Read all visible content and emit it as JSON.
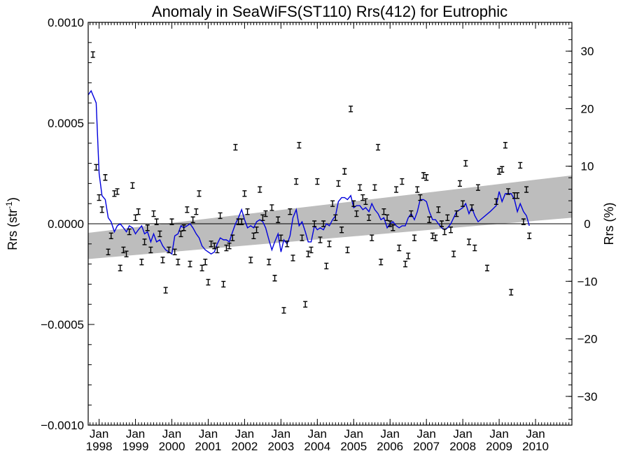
{
  "chart_data": {
    "type": "scatter",
    "title": "Anomaly in SeaWiFS(ST110) Rrs(412) for Eutrophic",
    "ylabel_left_main": "Rrs (str",
    "ylabel_left_sup": "-1",
    "ylabel_left_close": ")",
    "ylabel_right": "Rrs (%)",
    "xlim": [
      1997.7,
      2011.0
    ],
    "ylim": [
      -0.001,
      0.001
    ],
    "y2lim": [
      -35,
      35
    ],
    "grid": false,
    "legend": "none",
    "x_tick_labels": [
      {
        "top": "Jan",
        "bottom": "1998"
      },
      {
        "top": "Jan",
        "bottom": "1999"
      },
      {
        "top": "Jan",
        "bottom": "2000"
      },
      {
        "top": "Jan",
        "bottom": "2001"
      },
      {
        "top": "Jan",
        "bottom": "2002"
      },
      {
        "top": "Jan",
        "bottom": "2003"
      },
      {
        "top": "Jan",
        "bottom": "2004"
      },
      {
        "top": "Jan",
        "bottom": "2005"
      },
      {
        "top": "Jan",
        "bottom": "2006"
      },
      {
        "top": "Jan",
        "bottom": "2007"
      },
      {
        "top": "Jan",
        "bottom": "2008"
      },
      {
        "top": "Jan",
        "bottom": "2009"
      },
      {
        "top": "Jan",
        "bottom": "2010"
      }
    ],
    "y_tick_labels": [
      "0.0010",
      "0.0005",
      "0.0000",
      "−0.0005",
      "−0.0010"
    ],
    "y_tick_values": [
      0.001,
      0.0005,
      0.0,
      -0.0005,
      -0.001
    ],
    "y2_tick_labels": [
      "30",
      "20",
      "10",
      "0",
      "−10",
      "−20",
      "−30"
    ],
    "y2_tick_values": [
      30,
      20,
      10,
      0,
      -10,
      -20,
      -30
    ],
    "trend_band": {
      "x": [
        1997.7,
        2011.0
      ],
      "upper": [
        -4.5e-05,
        0.00024
      ],
      "lower": [
        -0.000175,
        3e-05
      ]
    },
    "zero_line": 0.0,
    "colors": {
      "points": "#000000",
      "line": "#0000dd",
      "band": "#bdbdbd",
      "axis": "#000000"
    },
    "points": [
      {
        "x": 1997.83,
        "y": 0.00084
      },
      {
        "x": 1997.92,
        "y": 0.00028
      },
      {
        "x": 1998.0,
        "y": 0.00013
      },
      {
        "x": 1998.08,
        "y": 7e-05
      },
      {
        "x": 1998.17,
        "y": 0.00023
      },
      {
        "x": 1998.25,
        "y": -0.00014
      },
      {
        "x": 1998.33,
        "y": -6e-05
      },
      {
        "x": 1998.42,
        "y": 0.00015
      },
      {
        "x": 1998.5,
        "y": 0.00016
      },
      {
        "x": 1998.58,
        "y": -0.00022
      },
      {
        "x": 1998.67,
        "y": -0.00013
      },
      {
        "x": 1998.75,
        "y": -0.00015
      },
      {
        "x": 1998.83,
        "y": -4e-05
      },
      {
        "x": 1998.92,
        "y": 0.00019
      },
      {
        "x": 1999.0,
        "y": 3e-05
      },
      {
        "x": 1999.08,
        "y": 6e-05
      },
      {
        "x": 1999.17,
        "y": -0.00019
      },
      {
        "x": 1999.25,
        "y": -9e-05
      },
      {
        "x": 1999.33,
        "y": -2e-05
      },
      {
        "x": 1999.42,
        "y": -0.00013
      },
      {
        "x": 1999.5,
        "y": 5e-05
      },
      {
        "x": 1999.58,
        "y": 1e-05
      },
      {
        "x": 1999.67,
        "y": -5e-05
      },
      {
        "x": 1999.75,
        "y": -0.00018
      },
      {
        "x": 1999.83,
        "y": -0.00033
      },
      {
        "x": 1999.92,
        "y": -0.00013
      },
      {
        "x": 2000.0,
        "y": 1e-05
      },
      {
        "x": 2000.08,
        "y": -0.00014
      },
      {
        "x": 2000.17,
        "y": -0.00019
      },
      {
        "x": 2000.25,
        "y": -5e-05
      },
      {
        "x": 2000.33,
        "y": -2e-05
      },
      {
        "x": 2000.42,
        "y": 7e-05
      },
      {
        "x": 2000.5,
        "y": -0.0002
      },
      {
        "x": 2000.58,
        "y": 2e-05
      },
      {
        "x": 2000.67,
        "y": 6e-05
      },
      {
        "x": 2000.75,
        "y": 0.00015
      },
      {
        "x": 2000.83,
        "y": -0.00022
      },
      {
        "x": 2000.92,
        "y": -0.00019
      },
      {
        "x": 2001.0,
        "y": -0.00029
      },
      {
        "x": 2001.08,
        "y": -0.0001
      },
      {
        "x": 2001.17,
        "y": -0.00011
      },
      {
        "x": 2001.25,
        "y": -0.00013
      },
      {
        "x": 2001.33,
        "y": 4e-05
      },
      {
        "x": 2001.42,
        "y": -0.0003
      },
      {
        "x": 2001.5,
        "y": -0.00012
      },
      {
        "x": 2001.58,
        "y": -0.00011
      },
      {
        "x": 2001.67,
        "y": -7e-05
      },
      {
        "x": 2001.75,
        "y": 0.00038
      },
      {
        "x": 2001.83,
        "y": 1e-05
      },
      {
        "x": 2001.92,
        "y": 1e-05
      },
      {
        "x": 2002.0,
        "y": 0.00015
      },
      {
        "x": 2002.08,
        "y": 6e-05
      },
      {
        "x": 2002.17,
        "y": -0.00018
      },
      {
        "x": 2002.25,
        "y": -6e-05
      },
      {
        "x": 2002.33,
        "y": -3e-05
      },
      {
        "x": 2002.42,
        "y": 0.00017
      },
      {
        "x": 2002.5,
        "y": 3e-05
      },
      {
        "x": 2002.58,
        "y": 5e-05
      },
      {
        "x": 2002.67,
        "y": -0.00019
      },
      {
        "x": 2002.75,
        "y": 8e-05
      },
      {
        "x": 2002.83,
        "y": -0.00027
      },
      {
        "x": 2002.92,
        "y": 2e-05
      },
      {
        "x": 2003.0,
        "y": -7e-05
      },
      {
        "x": 2003.08,
        "y": -0.00043
      },
      {
        "x": 2003.17,
        "y": -0.0001
      },
      {
        "x": 2003.25,
        "y": 6e-05
      },
      {
        "x": 2003.33,
        "y": -0.00017
      },
      {
        "x": 2003.42,
        "y": 0.00021
      },
      {
        "x": 2003.5,
        "y": 0.00039
      },
      {
        "x": 2003.58,
        "y": -7e-05
      },
      {
        "x": 2003.67,
        "y": -0.0004
      },
      {
        "x": 2003.75,
        "y": -0.00015
      },
      {
        "x": 2003.83,
        "y": -0.00013
      },
      {
        "x": 2003.92,
        "y": 0.0
      },
      {
        "x": 2004.0,
        "y": 0.00021
      },
      {
        "x": 2004.08,
        "y": -8e-05
      },
      {
        "x": 2004.17,
        "y": 0.0
      },
      {
        "x": 2004.25,
        "y": -0.00021
      },
      {
        "x": 2004.33,
        "y": -0.0001
      },
      {
        "x": 2004.42,
        "y": 0.0001
      },
      {
        "x": 2004.5,
        "y": 3e-05
      },
      {
        "x": 2004.58,
        "y": 0.0002
      },
      {
        "x": 2004.67,
        "y": -3e-05
      },
      {
        "x": 2004.75,
        "y": 0.00026
      },
      {
        "x": 2004.83,
        "y": -0.00013
      },
      {
        "x": 2004.92,
        "y": 0.00057
      },
      {
        "x": 2005.0,
        "y": 0.0001
      },
      {
        "x": 2005.08,
        "y": 5e-05
      },
      {
        "x": 2005.17,
        "y": 0.00018
      },
      {
        "x": 2005.25,
        "y": 0.00013
      },
      {
        "x": 2005.33,
        "y": 0.00011
      },
      {
        "x": 2005.42,
        "y": 3e-05
      },
      {
        "x": 2005.5,
        "y": -7e-05
      },
      {
        "x": 2005.58,
        "y": 0.00018
      },
      {
        "x": 2005.67,
        "y": 0.00038
      },
      {
        "x": 2005.75,
        "y": -0.00019
      },
      {
        "x": 2005.83,
        "y": 6e-05
      },
      {
        "x": 2005.92,
        "y": 3e-05
      },
      {
        "x": 2006.0,
        "y": 0.0
      },
      {
        "x": 2006.08,
        "y": -2e-05
      },
      {
        "x": 2006.17,
        "y": 0.00017
      },
      {
        "x": 2006.25,
        "y": -0.00012
      },
      {
        "x": 2006.33,
        "y": 0.00021
      },
      {
        "x": 2006.42,
        "y": -0.0002
      },
      {
        "x": 2006.5,
        "y": -0.00016
      },
      {
        "x": 2006.58,
        "y": 5e-05
      },
      {
        "x": 2006.67,
        "y": -7e-05
      },
      {
        "x": 2006.75,
        "y": 0.00017
      },
      {
        "x": 2006.83,
        "y": 0.00013
      },
      {
        "x": 2006.92,
        "y": 0.00024
      },
      {
        "x": 2007.0,
        "y": 0.00023
      },
      {
        "x": 2007.08,
        "y": 2e-05
      },
      {
        "x": 2007.17,
        "y": -6e-05
      },
      {
        "x": 2007.25,
        "y": -7e-05
      },
      {
        "x": 2007.33,
        "y": 7e-05
      },
      {
        "x": 2007.42,
        "y": 0.0
      },
      {
        "x": 2007.5,
        "y": -4e-05
      },
      {
        "x": 2007.58,
        "y": 3e-05
      },
      {
        "x": 2007.67,
        "y": -3e-05
      },
      {
        "x": 2007.75,
        "y": -0.00015
      },
      {
        "x": 2007.83,
        "y": 5e-05
      },
      {
        "x": 2007.92,
        "y": 0.0002
      },
      {
        "x": 2008.0,
        "y": 0.0001
      },
      {
        "x": 2008.08,
        "y": 0.0003
      },
      {
        "x": 2008.17,
        "y": -9e-05
      },
      {
        "x": 2008.25,
        "y": 8e-05
      },
      {
        "x": 2008.33,
        "y": -0.00012
      },
      {
        "x": 2008.42,
        "y": 0.00018
      },
      {
        "x": 2008.67,
        "y": -0.00022
      },
      {
        "x": 2008.92,
        "y": 0.00011
      },
      {
        "x": 2009.0,
        "y": 0.00026
      },
      {
        "x": 2009.08,
        "y": 0.00027
      },
      {
        "x": 2009.17,
        "y": 0.00039
      },
      {
        "x": 2009.25,
        "y": 0.00016
      },
      {
        "x": 2009.33,
        "y": -0.00034
      },
      {
        "x": 2009.42,
        "y": 0.00014
      },
      {
        "x": 2009.5,
        "y": 0.00014
      },
      {
        "x": 2009.58,
        "y": 0.00029
      },
      {
        "x": 2009.67,
        "y": 1e-05
      },
      {
        "x": 2009.75,
        "y": 0.00017
      },
      {
        "x": 2009.83,
        "y": -6e-05
      }
    ],
    "line": [
      {
        "x": 1997.7,
        "y": 0.00064
      },
      {
        "x": 1997.78,
        "y": 0.00066
      },
      {
        "x": 1997.92,
        "y": 0.0006
      },
      {
        "x": 1998.0,
        "y": 0.00025
      },
      {
        "x": 1998.08,
        "y": 0.00014
      },
      {
        "x": 1998.17,
        "y": 0.00012
      },
      {
        "x": 1998.25,
        "y": 3e-05
      },
      {
        "x": 1998.33,
        "y": 1e-05
      },
      {
        "x": 1998.42,
        "y": -4e-05
      },
      {
        "x": 1998.5,
        "y": -1e-05
      },
      {
        "x": 1998.58,
        "y": 0.0
      },
      {
        "x": 1998.67,
        "y": -2e-05
      },
      {
        "x": 1998.75,
        "y": -4e-05
      },
      {
        "x": 1998.83,
        "y": -1e-05
      },
      {
        "x": 1998.92,
        "y": -2e-05
      },
      {
        "x": 1999.0,
        "y": -5e-05
      },
      {
        "x": 1999.08,
        "y": -3e-05
      },
      {
        "x": 1999.17,
        "y": -1e-05
      },
      {
        "x": 1999.25,
        "y": -5e-05
      },
      {
        "x": 1999.33,
        "y": -4e-05
      },
      {
        "x": 1999.42,
        "y": -9e-05
      },
      {
        "x": 1999.5,
        "y": -5e-05
      },
      {
        "x": 1999.58,
        "y": -9e-05
      },
      {
        "x": 1999.67,
        "y": -8e-05
      },
      {
        "x": 1999.75,
        "y": -0.00011
      },
      {
        "x": 1999.83,
        "y": -0.00013
      },
      {
        "x": 1999.92,
        "y": -0.00014
      },
      {
        "x": 2000.0,
        "y": -0.00015
      },
      {
        "x": 2000.08,
        "y": -6e-05
      },
      {
        "x": 2000.17,
        "y": -5e-05
      },
      {
        "x": 2000.25,
        "y": -1e-05
      },
      {
        "x": 2000.33,
        "y": -2e-05
      },
      {
        "x": 2000.42,
        "y": -1e-05
      },
      {
        "x": 2000.5,
        "y": 0.0
      },
      {
        "x": 2000.58,
        "y": -2e-05
      },
      {
        "x": 2000.67,
        "y": -5e-05
      },
      {
        "x": 2000.75,
        "y": -7e-05
      },
      {
        "x": 2000.83,
        "y": -0.00011
      },
      {
        "x": 2000.92,
        "y": -0.00013
      },
      {
        "x": 2001.0,
        "y": -0.00014
      },
      {
        "x": 2001.08,
        "y": -0.00015
      },
      {
        "x": 2001.17,
        "y": -0.00014
      },
      {
        "x": 2001.25,
        "y": -0.0001
      },
      {
        "x": 2001.33,
        "y": -7e-05
      },
      {
        "x": 2001.42,
        "y": -8e-05
      },
      {
        "x": 2001.5,
        "y": -8e-05
      },
      {
        "x": 2001.58,
        "y": -9e-05
      },
      {
        "x": 2001.67,
        "y": -4e-05
      },
      {
        "x": 2001.75,
        "y": 0.0
      },
      {
        "x": 2001.83,
        "y": 3e-05
      },
      {
        "x": 2001.92,
        "y": 7e-05
      },
      {
        "x": 2002.0,
        "y": 2e-05
      },
      {
        "x": 2002.08,
        "y": -2e-05
      },
      {
        "x": 2002.17,
        "y": -1e-05
      },
      {
        "x": 2002.25,
        "y": -2e-05
      },
      {
        "x": 2002.33,
        "y": 1e-05
      },
      {
        "x": 2002.42,
        "y": 2e-05
      },
      {
        "x": 2002.5,
        "y": 1e-05
      },
      {
        "x": 2002.58,
        "y": -2e-05
      },
      {
        "x": 2002.67,
        "y": -8e-05
      },
      {
        "x": 2002.75,
        "y": -0.00013
      },
      {
        "x": 2002.83,
        "y": -9e-05
      },
      {
        "x": 2002.92,
        "y": -5e-05
      },
      {
        "x": 2003.0,
        "y": -0.00014
      },
      {
        "x": 2003.08,
        "y": -8e-05
      },
      {
        "x": 2003.17,
        "y": -0.0001
      },
      {
        "x": 2003.25,
        "y": -6e-05
      },
      {
        "x": 2003.33,
        "y": 3e-05
      },
      {
        "x": 2003.42,
        "y": 7e-05
      },
      {
        "x": 2003.5,
        "y": -1e-05
      },
      {
        "x": 2003.58,
        "y": 1e-05
      },
      {
        "x": 2003.67,
        "y": -4e-05
      },
      {
        "x": 2003.75,
        "y": -9e-05
      },
      {
        "x": 2003.83,
        "y": -9e-05
      },
      {
        "x": 2003.92,
        "y": -1e-05
      },
      {
        "x": 2004.0,
        "y": -3e-05
      },
      {
        "x": 2004.08,
        "y": -2e-05
      },
      {
        "x": 2004.17,
        "y": -3e-05
      },
      {
        "x": 2004.25,
        "y": 0.0
      },
      {
        "x": 2004.33,
        "y": -1e-05
      },
      {
        "x": 2004.42,
        "y": 2e-05
      },
      {
        "x": 2004.5,
        "y": 4e-05
      },
      {
        "x": 2004.58,
        "y": 0.00011
      },
      {
        "x": 2004.67,
        "y": 0.00013
      },
      {
        "x": 2004.75,
        "y": 0.00013
      },
      {
        "x": 2004.83,
        "y": 0.00012
      },
      {
        "x": 2004.92,
        "y": 0.00014
      },
      {
        "x": 2005.0,
        "y": 8e-05
      },
      {
        "x": 2005.08,
        "y": 9e-05
      },
      {
        "x": 2005.17,
        "y": 9e-05
      },
      {
        "x": 2005.25,
        "y": 7e-05
      },
      {
        "x": 2005.33,
        "y": 8e-05
      },
      {
        "x": 2005.42,
        "y": 6e-05
      },
      {
        "x": 2005.5,
        "y": 0.0001
      },
      {
        "x": 2005.58,
        "y": 7e-05
      },
      {
        "x": 2005.67,
        "y": 5e-05
      },
      {
        "x": 2005.75,
        "y": 2e-05
      },
      {
        "x": 2005.83,
        "y": 3e-05
      },
      {
        "x": 2005.92,
        "y": -2e-05
      },
      {
        "x": 2006.0,
        "y": 0.0
      },
      {
        "x": 2006.08,
        "y": 1e-05
      },
      {
        "x": 2006.17,
        "y": -1e-05
      },
      {
        "x": 2006.25,
        "y": -2e-05
      },
      {
        "x": 2006.33,
        "y": -1e-05
      },
      {
        "x": 2006.42,
        "y": -1e-05
      },
      {
        "x": 2006.5,
        "y": 3e-05
      },
      {
        "x": 2006.58,
        "y": 5e-05
      },
      {
        "x": 2006.67,
        "y": 2e-05
      },
      {
        "x": 2006.75,
        "y": 6e-05
      },
      {
        "x": 2006.83,
        "y": 0.00012
      },
      {
        "x": 2006.92,
        "y": 0.00012
      },
      {
        "x": 2007.0,
        "y": 0.00011
      },
      {
        "x": 2007.08,
        "y": 6e-05
      },
      {
        "x": 2007.17,
        "y": 2e-05
      },
      {
        "x": 2007.25,
        "y": 2e-05
      },
      {
        "x": 2007.33,
        "y": 0.0
      },
      {
        "x": 2007.42,
        "y": -2e-05
      },
      {
        "x": 2007.5,
        "y": -3e-05
      },
      {
        "x": 2007.58,
        "y": -2e-05
      },
      {
        "x": 2007.67,
        "y": 0.0
      },
      {
        "x": 2007.75,
        "y": 3e-05
      },
      {
        "x": 2007.83,
        "y": 6e-05
      },
      {
        "x": 2007.92,
        "y": 7e-05
      },
      {
        "x": 2008.0,
        "y": 8e-05
      },
      {
        "x": 2008.08,
        "y": 0.0001
      },
      {
        "x": 2008.17,
        "y": 5e-05
      },
      {
        "x": 2008.25,
        "y": 8e-05
      },
      {
        "x": 2008.33,
        "y": 4e-05
      },
      {
        "x": 2008.42,
        "y": 1e-05
      },
      {
        "x": 2008.75,
        "y": 6e-05
      },
      {
        "x": 2008.92,
        "y": 9e-05
      },
      {
        "x": 2009.0,
        "y": 0.00016
      },
      {
        "x": 2009.08,
        "y": 0.00011
      },
      {
        "x": 2009.17,
        "y": 0.00015
      },
      {
        "x": 2009.25,
        "y": 0.00015
      },
      {
        "x": 2009.33,
        "y": 0.00015
      },
      {
        "x": 2009.42,
        "y": 0.00012
      },
      {
        "x": 2009.5,
        "y": 6e-05
      },
      {
        "x": 2009.58,
        "y": 0.0001
      },
      {
        "x": 2009.67,
        "y": 6e-05
      },
      {
        "x": 2009.75,
        "y": 4e-05
      },
      {
        "x": 2009.83,
        "y": -1e-05
      }
    ]
  }
}
